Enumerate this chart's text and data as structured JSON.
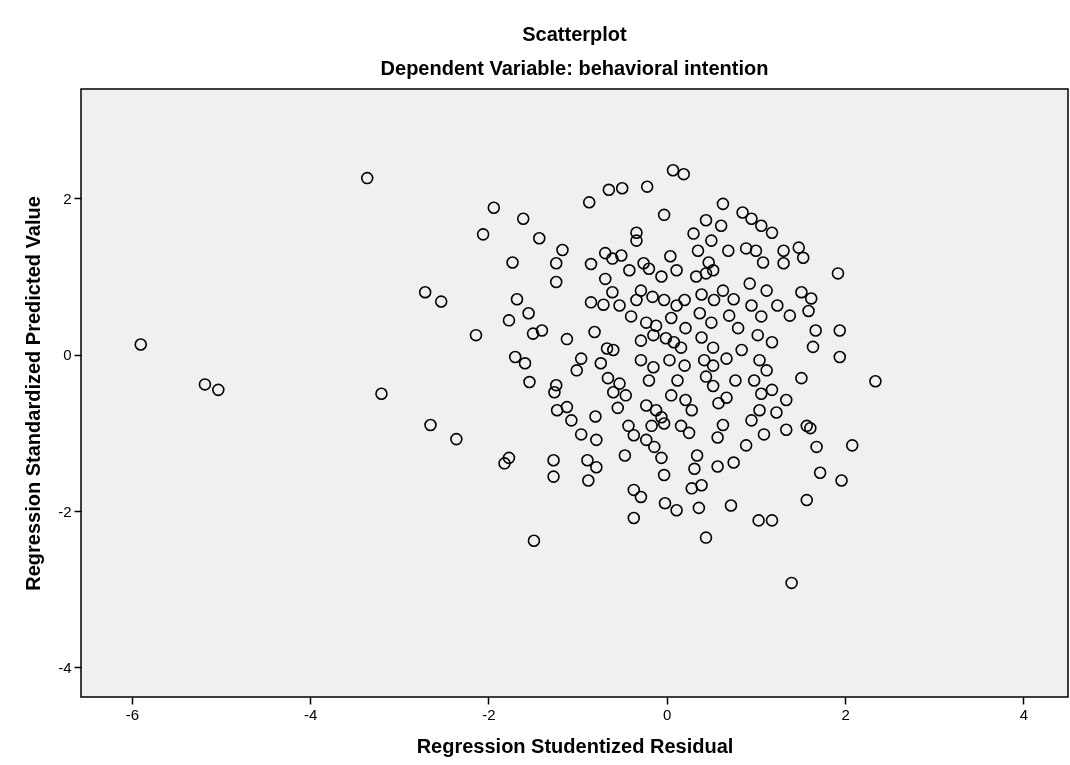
{
  "chart_data": {
    "type": "scatter",
    "title": "Scatterplot",
    "subtitle": "Dependent Variable: behavioral intention",
    "xlabel": "Regression Studentized Residual",
    "ylabel": "Regression Standardized Predicted Value",
    "xlim": [
      -6.57,
      4.5
    ],
    "ylim": [
      -4.38,
      3.4
    ],
    "xticks": [
      -6,
      -4,
      -2,
      0,
      2,
      4
    ],
    "yticks": [
      -4,
      -2,
      0,
      2
    ],
    "grid": false,
    "marker": "circle",
    "x": [
      -5.9,
      -5.18,
      -5.03,
      -3.36,
      -3.2,
      -2.71,
      -2.53,
      -2.65,
      -2.36,
      -2.06,
      -1.94,
      -2.14,
      -1.77,
      -1.82,
      -1.49,
      -1.73,
      -1.61,
      -1.43,
      -1.68,
      -1.77,
      -1.55,
      -1.7,
      -1.59,
      -1.54,
      -1.5,
      -1.4,
      -1.24,
      -1.24,
      -1.17,
      -1.12,
      -1.24,
      -1.26,
      -1.23,
      -1.12,
      -1.07,
      -1.27,
      -1.27,
      -0.96,
      -1.01,
      -0.96,
      -0.87,
      -0.85,
      -0.85,
      -0.81,
      -0.89,
      -0.79,
      -0.88,
      -0.8,
      -0.79,
      -0.65,
      -0.5,
      -0.69,
      -0.61,
      -0.51,
      -0.69,
      -0.61,
      -0.71,
      -0.53,
      -0.67,
      -0.6,
      -0.74,
      -0.66,
      -0.6,
      -0.55,
      -0.53,
      -0.46,
      -0.43,
      -0.37,
      -0.47,
      -0.37,
      -0.29,
      -0.37,
      -0.22,
      -0.34,
      -0.34,
      -0.42,
      -0.26,
      -0.2,
      -0.29,
      -0.16,
      -0.34,
      -0.4,
      -0.23,
      -0.12,
      -0.29,
      -0.15,
      -0.29,
      -0.15,
      -0.2,
      -0.23,
      -0.12,
      -0.06,
      -0.17,
      -0.03,
      -0.23,
      -0.14,
      -0.06,
      -0.03,
      -0.02,
      -0.03,
      0.04,
      0.07,
      0.19,
      -0.06,
      0.11,
      -0.03,
      0.11,
      0.2,
      0.05,
      0.21,
      -0.01,
      0.08,
      0.16,
      0.03,
      0.2,
      0.12,
      0.05,
      0.21,
      0.28,
      0.16,
      0.25,
      0.11,
      0.31,
      0.34,
      0.28,
      0.39,
      0.36,
      0.44,
      0.3,
      0.44,
      0.5,
      0.35,
      0.47,
      0.33,
      0.44,
      0.52,
      0.39,
      0.53,
      0.37,
      0.5,
      0.39,
      0.52,
      0.42,
      0.52,
      0.44,
      0.52,
      0.58,
      0.67,
      0.57,
      0.63,
      0.57,
      0.75,
      0.72,
      0.63,
      0.61,
      0.69,
      0.63,
      0.75,
      0.7,
      0.8,
      0.67,
      0.84,
      0.77,
      0.85,
      0.95,
      1.06,
      1.18,
      1.0,
      1.08,
      0.89,
      0.93,
      1.12,
      0.95,
      1.06,
      1.02,
      1.18,
      1.04,
      1.12,
      0.98,
      1.06,
      1.18,
      0.95,
      1.04,
      0.89,
      1.03,
      1.18,
      1.31,
      1.31,
      1.48,
      1.53,
      1.24,
      1.38,
      1.51,
      1.62,
      1.59,
      1.67,
      1.64,
      1.23,
      1.34,
      1.34,
      1.57,
      1.61,
      1.51,
      1.68,
      1.57,
      1.72,
      1.94,
      1.92,
      1.94,
      1.96,
      2.08,
      2.34,
      1.4,
      1.09
    ],
    "series": [
      {
        "color": "#000000",
        "values": [
          0.13,
          -0.38,
          -0.45,
          2.26,
          -0.5,
          0.8,
          0.68,
          -0.9,
          -1.08,
          1.54,
          1.88,
          0.25,
          -1.32,
          -1.39,
          -2.38,
          1.18,
          1.74,
          1.49,
          0.71,
          0.44,
          0.53,
          -0.03,
          -0.11,
          -0.35,
          0.27,
          0.31,
          1.17,
          0.93,
          1.34,
          0.2,
          -0.39,
          -0.48,
          -0.71,
          -0.67,
          -0.84,
          -1.35,
          -1.56,
          -1.02,
          -0.2,
          -0.05,
          1.95,
          1.16,
          0.67,
          0.29,
          -1.35,
          -1.44,
          -1.61,
          -0.79,
          -1.09,
          2.11,
          2.13,
          1.3,
          1.23,
          1.27,
          0.97,
          0.8,
          0.64,
          0.63,
          0.08,
          0.06,
          -0.11,
          -0.3,
          -0.48,
          -0.68,
          -0.37,
          -0.52,
          -0.91,
          -1.03,
          -1.29,
          -1.73,
          -1.82,
          -2.09,
          2.15,
          1.56,
          1.46,
          1.08,
          1.17,
          1.1,
          0.82,
          0.74,
          0.7,
          0.49,
          0.41,
          0.37,
          0.18,
          0.25,
          -0.07,
          -0.16,
          -0.33,
          -0.65,
          -0.71,
          -0.8,
          -0.91,
          -0.88,
          -1.09,
          -1.18,
          -1.32,
          -1.54,
          -1.9,
          1.79,
          1.26,
          2.36,
          2.31,
          1.0,
          1.08,
          0.7,
          0.63,
          0.7,
          0.47,
          0.34,
          0.21,
          0.16,
          0.09,
          -0.07,
          -0.14,
          -0.33,
          -0.52,
          -0.58,
          -0.71,
          -0.91,
          -1.0,
          -1.99,
          -1.46,
          -1.29,
          -1.71,
          -1.67,
          -1.96,
          -2.34,
          1.55,
          1.72,
          1.46,
          1.33,
          1.18,
          1.0,
          1.04,
          1.08,
          0.77,
          0.7,
          0.53,
          0.41,
          0.22,
          0.09,
          -0.07,
          -0.14,
          -0.28,
          -0.4,
          -0.62,
          -0.55,
          -1.06,
          -0.9,
          -1.43,
          -1.38,
          -1.93,
          1.93,
          1.65,
          1.33,
          0.82,
          0.71,
          0.5,
          0.34,
          -0.05,
          0.06,
          -0.33,
          1.82,
          1.74,
          1.65,
          1.56,
          1.33,
          1.18,
          1.36,
          0.91,
          0.82,
          0.63,
          0.49,
          0.25,
          0.16,
          -0.07,
          -0.2,
          -0.33,
          -0.5,
          -0.45,
          -0.84,
          -0.71,
          -1.16,
          -2.12,
          -2.12,
          1.17,
          1.33,
          1.37,
          1.24,
          0.63,
          0.5,
          0.8,
          0.72,
          0.56,
          0.31,
          0.1,
          -0.74,
          -0.58,
          -0.96,
          -0.91,
          -0.94,
          -0.3,
          -1.18,
          -1.86,
          -1.51,
          0.31,
          1.04,
          -0.03,
          -1.61,
          -1.16,
          -0.34,
          -2.92,
          -1.02
        ]
      }
    ]
  }
}
